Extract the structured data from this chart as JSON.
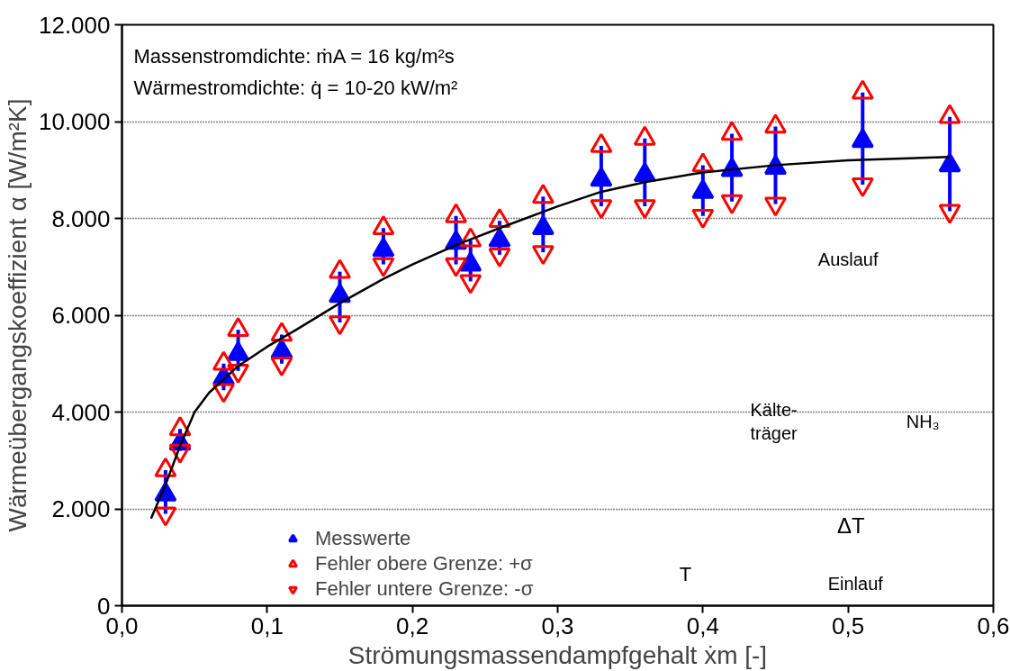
{
  "chart_data": {
    "type": "scatter",
    "xlabel": "Strömungsmassendampfgehalt ẋm [-]",
    "ylabel": "Wärmeübergangskoeffizient α [W/m²K]",
    "x": [
      0.03,
      0.04,
      0.07,
      0.08,
      0.11,
      0.15,
      0.18,
      0.23,
      0.24,
      0.26,
      0.29,
      0.33,
      0.36,
      0.4,
      0.42,
      0.45,
      0.51,
      0.57
    ],
    "series": [
      {
        "name": "Messwerte",
        "color": "#0000ff",
        "marker": "triangle",
        "values": [
          2300,
          3350,
          4700,
          5200,
          5250,
          6400,
          7350,
          7500,
          7050,
          7550,
          7800,
          8800,
          8900,
          8550,
          9000,
          9050,
          9600,
          9100
        ],
        "errors": [
          [
            1900,
            2800
          ],
          [
            3200,
            3650
          ],
          [
            4450,
            5000
          ],
          [
            4850,
            5700
          ],
          [
            5000,
            5600
          ],
          [
            5850,
            6900
          ],
          [
            7050,
            7800
          ],
          [
            7050,
            8050
          ],
          [
            6700,
            7550
          ],
          [
            7250,
            7950
          ],
          [
            7300,
            8450
          ],
          [
            8250,
            9500
          ],
          [
            8250,
            9650
          ],
          [
            8050,
            9100
          ],
          [
            8350,
            9750
          ],
          [
            8300,
            9900
          ],
          [
            8700,
            10600
          ],
          [
            8150,
            10100
          ]
        ]
      },
      {
        "name": "Fehler obere Grenze: +σ",
        "color": "#ff0000",
        "marker": "triangle",
        "values": [
          2800,
          3650,
          5000,
          5700,
          5600,
          6900,
          7800,
          8050,
          7550,
          7950,
          8450,
          9500,
          9650,
          9100,
          9750,
          9900,
          10600,
          10100
        ]
      },
      {
        "name": "Fehler untere Grenze: -σ",
        "color": "#ff0000",
        "marker": "triangle",
        "values": [
          1900,
          3200,
          4450,
          4850,
          5000,
          5850,
          7050,
          7050,
          6700,
          7250,
          7300,
          8250,
          8250,
          8050,
          8350,
          8300,
          8700,
          8150
        ]
      },
      {
        "type": "line",
        "color": "#000000",
        "line_style": "solid",
        "x": [
          0.02,
          0.03,
          0.04,
          0.05,
          0.06,
          0.08,
          0.1,
          0.12,
          0.15,
          0.18,
          0.2,
          0.23,
          0.26,
          0.3,
          0.33,
          0.36,
          0.4,
          0.45,
          0.5,
          0.57
        ],
        "values": [
          1800,
          2500,
          3300,
          4000,
          4400,
          4950,
          5350,
          5700,
          6250,
          6750,
          7050,
          7450,
          7800,
          8250,
          8550,
          8750,
          8950,
          9100,
          9200,
          9270
        ]
      }
    ],
    "xlim": [
      0,
      0.6
    ],
    "xticks": [
      {
        "value": 0,
        "label": "0,0"
      },
      {
        "value": 0.1,
        "label": "0,1"
      },
      {
        "value": 0.2,
        "label": "0,2"
      },
      {
        "value": 0.3,
        "label": "0,3"
      },
      {
        "value": 0.4,
        "label": "0,4"
      },
      {
        "value": 0.5,
        "label": "0,5"
      },
      {
        "value": 0.6,
        "label": "0,6"
      }
    ],
    "ylim": [
      0,
      12000
    ],
    "yticks": [
      0,
      {
        "value": 2000,
        "label": "2.000"
      },
      {
        "value": 4000,
        "label": "4.000"
      },
      {
        "value": 6000,
        "label": "6.000"
      },
      {
        "value": 8000,
        "label": "8.000"
      },
      {
        "value": 10000,
        "label": "10.000"
      },
      {
        "value": 12000,
        "label": "12.000"
      }
    ],
    "grid": "y",
    "legend": "bottom left",
    "annotations": [
      "Massenstromdichte: ṁA = 16 kg/m²s",
      "Wärmestromdichte:  q̇ = 10-20 kW/m²",
      "Auslauf",
      "Kälte-\nträger",
      "NH₃",
      "ΔT",
      "Einlauf",
      "T"
    ]
  }
}
